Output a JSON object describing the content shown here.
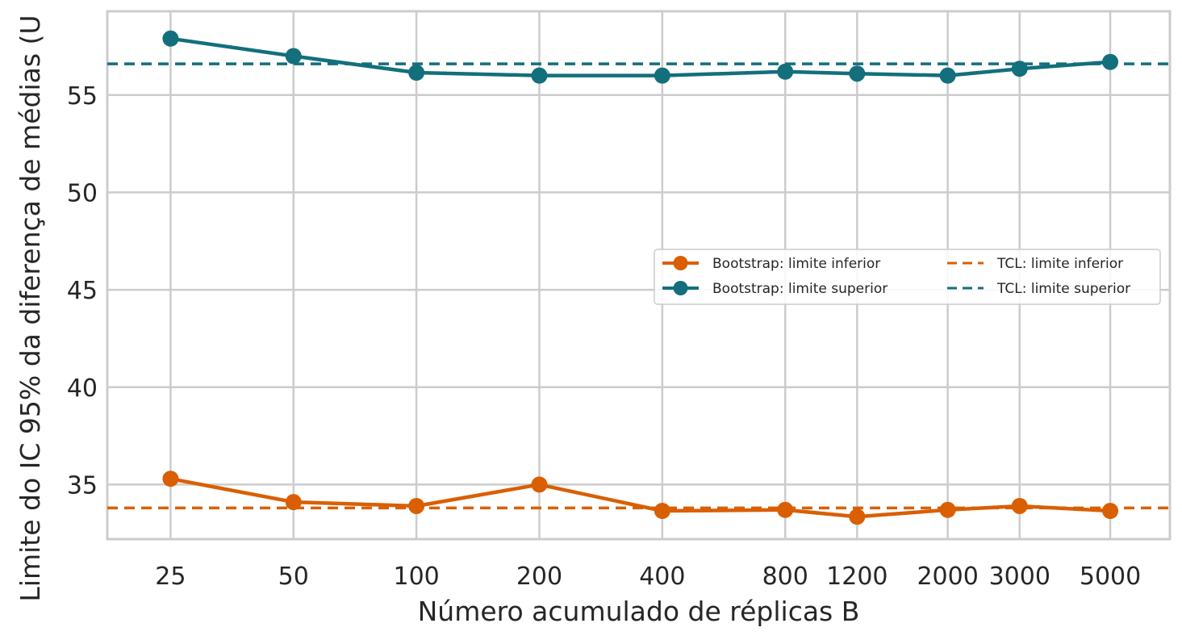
{
  "chart_data": {
    "type": "line",
    "xlabel": "Número acumulado de réplicas B",
    "ylabel": "Limite do IC 95% da diferença de médias (U",
    "x": [
      25,
      50,
      100,
      200,
      400,
      800,
      1200,
      2000,
      3000,
      5000
    ],
    "x_tick_labels": [
      "25",
      "50",
      "100",
      "200",
      "400",
      "800",
      "1200",
      "2000",
      "3000",
      "5000"
    ],
    "x_scale": "log",
    "xlim": [
      17.5,
      7000
    ],
    "ylim": [
      32.2,
      59.3
    ],
    "y_ticks": [
      35,
      40,
      45,
      50,
      55
    ],
    "grid": true,
    "legend_position": "center-right",
    "series": [
      {
        "name": "Bootstrap: limite inferior",
        "style": "solid-marker",
        "color": "#d95f02",
        "values": [
          35.3,
          34.1,
          33.9,
          35.0,
          33.65,
          33.7,
          33.35,
          33.7,
          33.9,
          33.65
        ]
      },
      {
        "name": "Bootstrap: limite superior",
        "style": "solid-marker",
        "color": "#136f7c",
        "values": [
          57.9,
          57.0,
          56.15,
          56.0,
          56.0,
          56.2,
          56.1,
          56.0,
          56.35,
          56.7
        ]
      },
      {
        "name": "TCL: limite inferior",
        "style": "dashed",
        "color": "#d95f02",
        "y": 33.8
      },
      {
        "name": "TCL: limite superior",
        "style": "dashed",
        "color": "#136f7c",
        "y": 56.6
      }
    ]
  }
}
